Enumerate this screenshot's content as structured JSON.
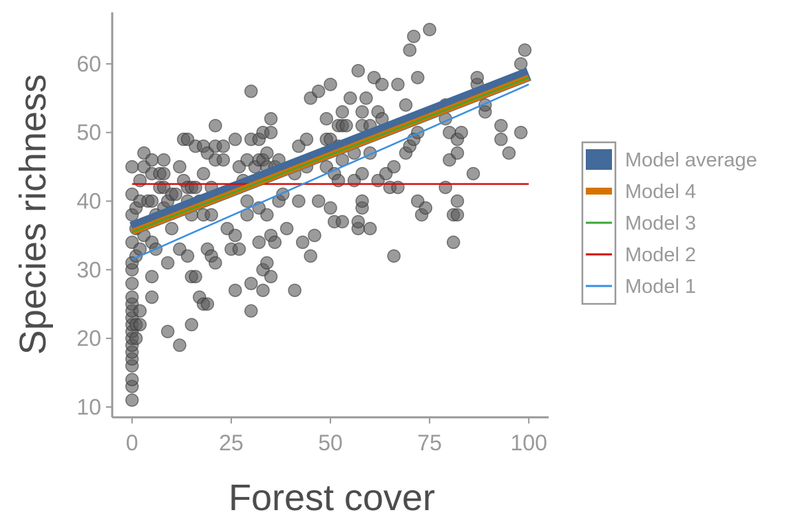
{
  "chart_data": {
    "type": "scatter",
    "xlabel": "Forest cover",
    "ylabel": "Species richness",
    "xlim": [
      -5,
      105
    ],
    "ylim": [
      8.5,
      67.5
    ],
    "x_ticks": [
      0,
      25,
      50,
      75,
      100
    ],
    "y_ticks": [
      10,
      20,
      30,
      40,
      50,
      60
    ],
    "grid": false,
    "legend_position": "right",
    "points": [
      [
        0,
        11
      ],
      [
        0,
        13
      ],
      [
        0,
        14
      ],
      [
        0,
        16
      ],
      [
        0,
        17
      ],
      [
        0,
        18
      ],
      [
        0,
        19
      ],
      [
        0,
        20
      ],
      [
        0,
        21
      ],
      [
        0,
        22
      ],
      [
        0,
        23
      ],
      [
        0,
        24
      ],
      [
        0,
        25
      ],
      [
        0,
        26
      ],
      [
        0,
        28
      ],
      [
        0,
        30
      ],
      [
        0,
        31
      ],
      [
        0,
        34
      ],
      [
        0,
        38
      ],
      [
        0,
        41
      ],
      [
        0,
        45
      ],
      [
        1,
        20
      ],
      [
        1,
        22
      ],
      [
        1,
        32
      ],
      [
        1,
        36
      ],
      [
        1,
        39
      ],
      [
        2,
        22
      ],
      [
        2,
        24
      ],
      [
        2,
        33
      ],
      [
        2,
        40
      ],
      [
        2,
        43
      ],
      [
        3,
        35
      ],
      [
        3,
        45
      ],
      [
        3,
        47
      ],
      [
        4,
        40
      ],
      [
        5,
        26
      ],
      [
        5,
        29
      ],
      [
        5,
        34
      ],
      [
        5,
        40
      ],
      [
        5,
        44
      ],
      [
        5,
        46
      ],
      [
        6,
        33
      ],
      [
        6,
        38
      ],
      [
        7,
        42
      ],
      [
        7,
        44
      ],
      [
        8,
        39
      ],
      [
        8,
        42
      ],
      [
        8,
        44
      ],
      [
        8,
        46
      ],
      [
        9,
        21
      ],
      [
        9,
        31
      ],
      [
        9,
        40
      ],
      [
        10,
        36
      ],
      [
        10,
        41
      ],
      [
        11,
        41
      ],
      [
        12,
        19
      ],
      [
        12,
        33
      ],
      [
        12,
        45
      ],
      [
        13,
        43
      ],
      [
        13,
        49
      ],
      [
        14,
        32
      ],
      [
        14,
        40
      ],
      [
        14,
        42
      ],
      [
        14,
        49
      ],
      [
        15,
        22
      ],
      [
        15,
        29
      ],
      [
        15,
        38
      ],
      [
        15,
        42
      ],
      [
        16,
        29
      ],
      [
        16,
        42
      ],
      [
        16,
        48
      ],
      [
        17,
        26
      ],
      [
        17,
        40
      ],
      [
        18,
        25
      ],
      [
        18,
        38
      ],
      [
        18,
        44
      ],
      [
        18,
        48
      ],
      [
        19,
        25
      ],
      [
        19,
        33
      ],
      [
        19,
        47
      ],
      [
        20,
        32
      ],
      [
        20,
        38
      ],
      [
        20,
        42
      ],
      [
        21,
        31
      ],
      [
        21,
        46
      ],
      [
        21,
        48
      ],
      [
        21,
        51
      ],
      [
        23,
        46
      ],
      [
        23,
        48
      ],
      [
        24,
        36
      ],
      [
        25,
        33
      ],
      [
        26,
        27
      ],
      [
        26,
        35
      ],
      [
        26,
        49
      ],
      [
        27,
        33
      ],
      [
        27,
        45
      ],
      [
        28,
        43
      ],
      [
        29,
        38
      ],
      [
        29,
        40
      ],
      [
        29,
        46
      ],
      [
        30,
        24
      ],
      [
        30,
        28
      ],
      [
        30,
        49
      ],
      [
        30,
        56
      ],
      [
        31,
        45
      ],
      [
        32,
        34
      ],
      [
        32,
        39
      ],
      [
        32,
        46
      ],
      [
        32,
        49
      ],
      [
        33,
        27
      ],
      [
        33,
        30
      ],
      [
        33,
        46
      ],
      [
        33,
        50
      ],
      [
        34,
        31
      ],
      [
        34,
        38
      ],
      [
        34,
        45
      ],
      [
        34,
        47
      ],
      [
        35,
        29
      ],
      [
        35,
        35
      ],
      [
        35,
        50
      ],
      [
        35,
        52
      ],
      [
        36,
        34
      ],
      [
        36,
        45
      ],
      [
        37,
        40
      ],
      [
        37,
        46
      ],
      [
        38,
        41
      ],
      [
        39,
        36
      ],
      [
        41,
        27
      ],
      [
        41,
        44
      ],
      [
        42,
        40
      ],
      [
        42,
        48
      ],
      [
        43,
        34
      ],
      [
        44,
        45
      ],
      [
        44,
        49
      ],
      [
        45,
        32
      ],
      [
        45,
        55
      ],
      [
        46,
        35
      ],
      [
        47,
        40
      ],
      [
        47,
        56
      ],
      [
        49,
        45
      ],
      [
        49,
        49
      ],
      [
        49,
        52
      ],
      [
        50,
        39
      ],
      [
        50,
        49
      ],
      [
        50,
        57
      ],
      [
        51,
        37
      ],
      [
        51,
        44
      ],
      [
        52,
        43
      ],
      [
        52,
        48
      ],
      [
        52,
        51
      ],
      [
        53,
        37
      ],
      [
        53,
        46
      ],
      [
        53,
        51
      ],
      [
        53,
        53
      ],
      [
        54,
        51
      ],
      [
        55,
        55
      ],
      [
        56,
        43
      ],
      [
        56,
        47
      ],
      [
        57,
        36
      ],
      [
        57,
        37
      ],
      [
        57,
        59
      ],
      [
        58,
        39
      ],
      [
        58,
        40
      ],
      [
        58,
        44
      ],
      [
        58,
        51
      ],
      [
        58,
        53
      ],
      [
        59,
        55
      ],
      [
        60,
        36
      ],
      [
        60,
        47
      ],
      [
        60,
        51
      ],
      [
        61,
        58
      ],
      [
        62,
        43
      ],
      [
        62,
        53
      ],
      [
        63,
        52
      ],
      [
        63,
        57
      ],
      [
        64,
        44
      ],
      [
        65,
        42
      ],
      [
        66,
        32
      ],
      [
        66,
        45
      ],
      [
        67,
        42
      ],
      [
        67,
        57
      ],
      [
        69,
        47
      ],
      [
        69,
        54
      ],
      [
        70,
        48
      ],
      [
        70,
        62
      ],
      [
        71,
        49
      ],
      [
        71,
        64
      ],
      [
        72,
        40
      ],
      [
        72,
        50
      ],
      [
        72,
        58
      ],
      [
        73,
        38
      ],
      [
        74,
        39
      ],
      [
        75,
        65
      ],
      [
        79,
        42
      ],
      [
        79,
        52
      ],
      [
        79,
        54
      ],
      [
        80,
        46
      ],
      [
        80,
        50
      ],
      [
        81,
        34
      ],
      [
        81,
        38
      ],
      [
        82,
        38
      ],
      [
        82,
        40
      ],
      [
        82,
        47
      ],
      [
        82,
        49
      ],
      [
        83,
        50
      ],
      [
        86,
        44
      ],
      [
        87,
        57
      ],
      [
        87,
        58
      ],
      [
        89,
        53
      ],
      [
        89,
        54
      ],
      [
        93,
        49
      ],
      [
        93,
        51
      ],
      [
        95,
        47
      ],
      [
        98,
        50
      ],
      [
        98,
        60
      ],
      [
        99,
        62
      ]
    ],
    "series": [
      {
        "name": "Model average",
        "x": [
          0,
          100
        ],
        "y": [
          36.0,
          58.5
        ],
        "color": "#426a9a"
      },
      {
        "name": "Model 4",
        "x": [
          0,
          100
        ],
        "y": [
          35.5,
          58.0
        ],
        "color": "#d67200"
      },
      {
        "name": "Model 3",
        "x": [
          0,
          100
        ],
        "y": [
          35.5,
          58.0
        ],
        "color": "#3ba834"
      },
      {
        "name": "Model 2",
        "x": [
          0,
          100
        ],
        "y": [
          42.5,
          42.5
        ],
        "color": "#d20f0f"
      },
      {
        "name": "Model 1",
        "x": [
          0,
          100
        ],
        "y": [
          31.5,
          57.0
        ],
        "color": "#3a8fe0"
      }
    ],
    "point_color": "#595959"
  }
}
